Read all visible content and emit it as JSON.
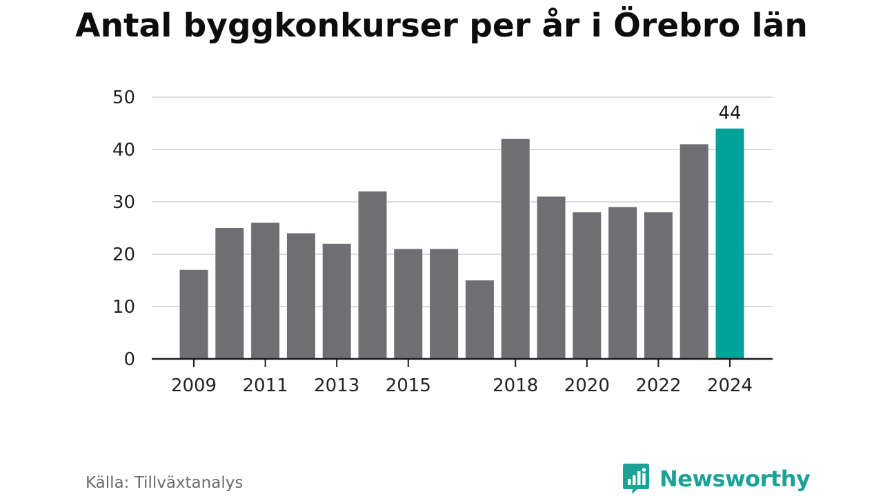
{
  "title": "Antal byggkonkurser per år i Örebro län",
  "source": "Källa: Tillväxtanalys",
  "brand": {
    "name": "Newsworthy",
    "icon": "newsworthy-logo-icon"
  },
  "colors": {
    "bar": "#6f6e73",
    "highlight": "#00a39a",
    "grid": "#dcdcdc",
    "axis": "#1a1a1a",
    "brand": "#1aa296"
  },
  "chart_data": {
    "type": "bar",
    "title": "Antal byggkonkurser per år i Örebro län",
    "xlabel": "",
    "ylabel": "",
    "categories": [
      2009,
      2010,
      2011,
      2012,
      2013,
      2014,
      2015,
      2016,
      2017,
      2018,
      2019,
      2020,
      2021,
      2022,
      2023,
      2024
    ],
    "values": [
      17,
      25,
      26,
      24,
      22,
      32,
      21,
      21,
      15,
      42,
      31,
      28,
      29,
      28,
      41,
      44
    ],
    "x_tick_labels": [
      "2009",
      "2011",
      "2013",
      "2015",
      "2018",
      "2020",
      "2022",
      "2024"
    ],
    "y_ticks": [
      0,
      10,
      20,
      30,
      40,
      50
    ],
    "ylim": [
      0,
      50
    ],
    "grid": true,
    "highlight_category": 2024,
    "data_labels": [
      {
        "category": 2024,
        "label": "44"
      }
    ]
  }
}
